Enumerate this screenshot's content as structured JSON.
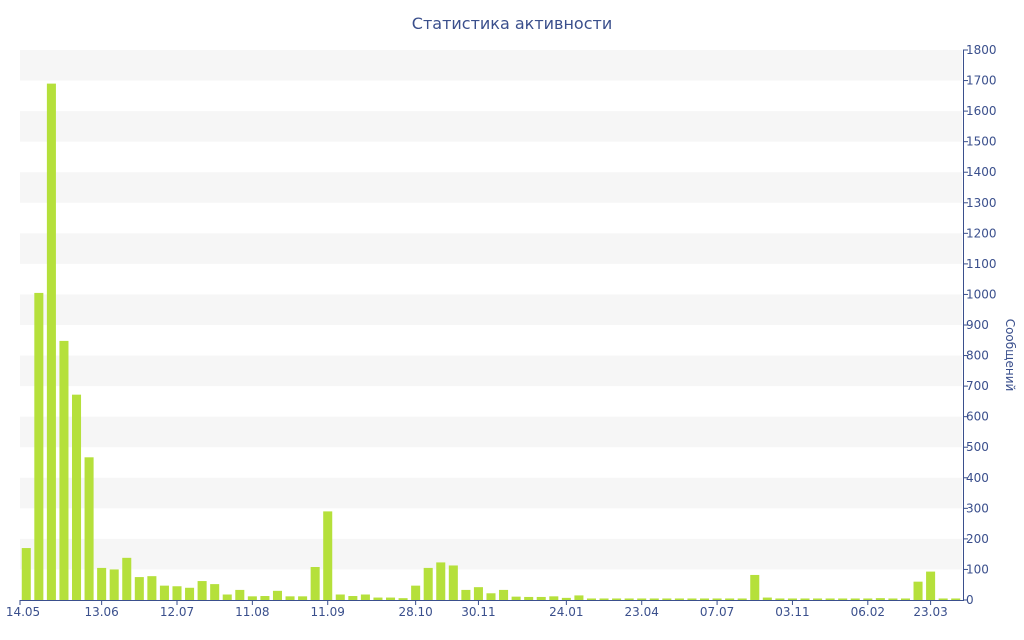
{
  "chart_data": {
    "type": "bar",
    "title": "Статистика активности",
    "xlabel": "",
    "ylabel": "Сообщений",
    "ylim": [
      0,
      1800
    ],
    "y_ticks": [
      0,
      100,
      200,
      300,
      400,
      500,
      600,
      700,
      800,
      900,
      1000,
      1100,
      1200,
      1300,
      1400,
      1500,
      1600,
      1700,
      1800
    ],
    "x_ticks": [
      {
        "label": "14.05",
        "index": 0
      },
      {
        "label": "13.06",
        "index": 6
      },
      {
        "label": "12.07",
        "index": 12
      },
      {
        "label": "11.08",
        "index": 18
      },
      {
        "label": "11.09",
        "index": 24
      },
      {
        "label": "28.10",
        "index": 31
      },
      {
        "label": "30.11",
        "index": 36
      },
      {
        "label": "24.01",
        "index": 43
      },
      {
        "label": "23.04",
        "index": 49
      },
      {
        "label": "07.07",
        "index": 55
      },
      {
        "label": "03.11",
        "index": 61
      },
      {
        "label": "06.02",
        "index": 67
      },
      {
        "label": "23.03",
        "index": 72
      }
    ],
    "y_axis_position": "right",
    "grid": "alternating-bands",
    "bar_color": "#b5e03b",
    "series": [
      {
        "values": [
          170,
          1005,
          1690,
          848,
          672,
          467,
          105,
          100,
          138,
          75,
          78,
          47,
          45,
          40,
          62,
          52,
          18,
          33,
          12,
          13,
          30,
          12,
          12,
          108,
          290,
          18,
          13,
          18,
          8,
          8,
          6,
          47,
          105,
          123,
          113,
          33,
          42,
          22,
          33,
          11,
          10,
          10,
          12,
          7,
          15,
          5,
          5,
          5,
          5,
          5,
          5,
          5,
          5,
          5,
          5,
          5,
          5,
          5,
          82,
          8,
          5,
          5,
          5,
          5,
          5,
          5,
          5,
          5,
          6,
          5,
          5,
          60,
          93,
          5,
          5
        ]
      }
    ]
  }
}
